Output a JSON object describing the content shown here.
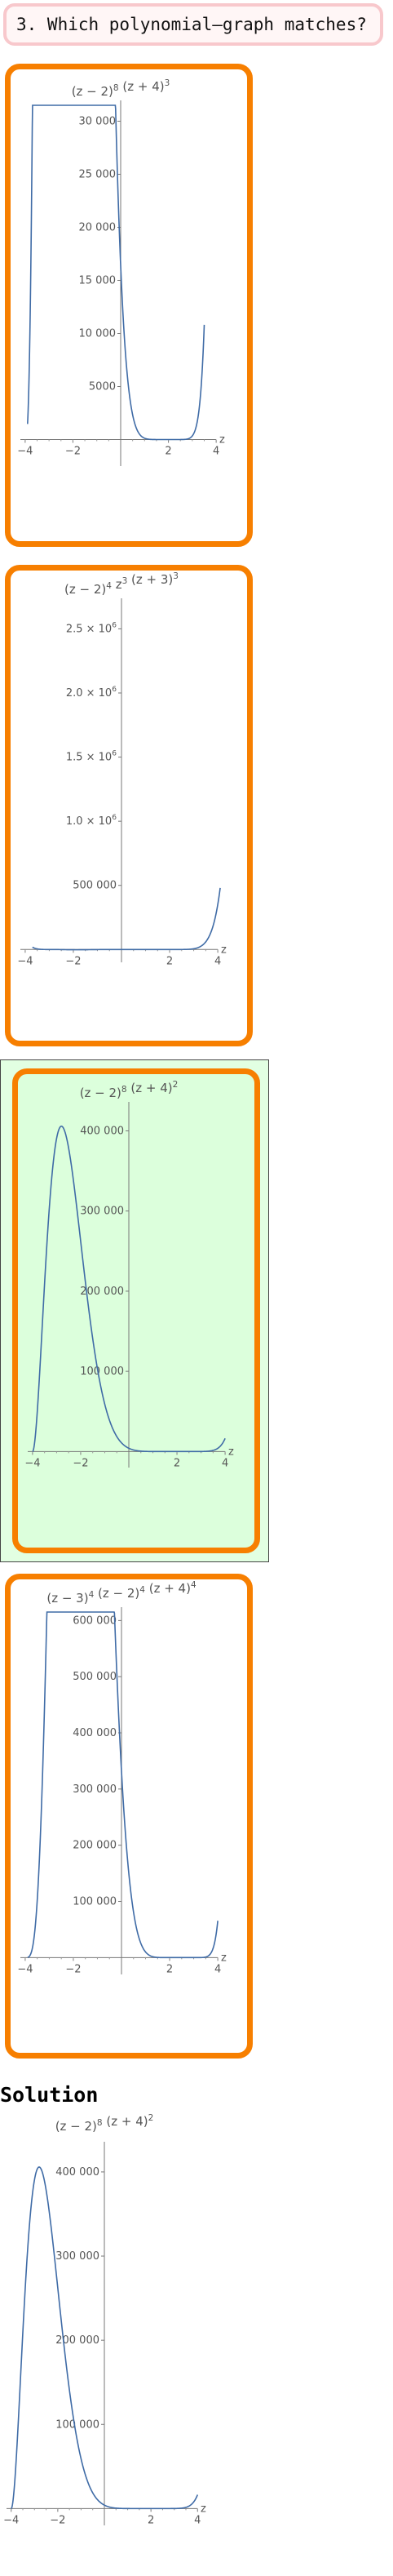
{
  "question": {
    "text": "3. Which polynomial–graph matches?"
  },
  "solution": {
    "heading": "Solution"
  },
  "chart_data": [
    {
      "type": "line",
      "role": "choice-1",
      "correct": false,
      "title_parts": [
        [
          "(z − 2)",
          "8"
        ],
        [
          " (z + 4)",
          "3"
        ]
      ],
      "xlim": [
        -4.2,
        4.2
      ],
      "ylim": [
        -2500,
        31500
      ],
      "x_ticks": [
        -4,
        -2,
        2,
        4
      ],
      "x_tick_labels": [
        "−4",
        "−2",
        "2",
        "4"
      ],
      "y_ticks": [
        5000,
        10000,
        15000,
        20000,
        25000,
        30000
      ],
      "y_tick_labels": [
        "5000",
        "10 000",
        "15 000",
        "20 000",
        "25 000",
        "30 000"
      ],
      "xlabel": "z",
      "series": [
        {
          "color": "#3f6ba6",
          "formula": "(z-2)^8 (z+4)^3",
          "x": [
            -3.9,
            3.5
          ]
        }
      ]
    },
    {
      "type": "line",
      "role": "choice-2",
      "correct": false,
      "title_parts": [
        [
          "(z − 2)",
          "4"
        ],
        [
          " z",
          "3"
        ],
        [
          " (z + 3)",
          "3"
        ]
      ],
      "xlim": [
        -4.2,
        4.2
      ],
      "ylim": [
        -100000,
        2700000
      ],
      "x_ticks": [
        -4,
        -2,
        2,
        4
      ],
      "x_tick_labels": [
        "−4",
        "−2",
        "2",
        "4"
      ],
      "y_ticks": [
        500000,
        1000000,
        1500000,
        2000000,
        2500000
      ],
      "y_tick_labels": [
        [
          "500 000",
          ""
        ],
        [
          "1.0 × 10",
          "6"
        ],
        [
          "1.5 × 10",
          "6"
        ],
        [
          "2.0 × 10",
          "6"
        ],
        [
          "2.5 × 10",
          "6"
        ]
      ],
      "xlabel": "z",
      "series": [
        {
          "color": "#3f6ba6",
          "formula": "(z-2)^4 z^3 (z+3)^3",
          "x": [
            -3.7,
            4.1
          ]
        }
      ]
    },
    {
      "type": "line",
      "role": "choice-3",
      "correct": true,
      "title_parts": [
        [
          "(z − 2)",
          "8"
        ],
        [
          " (z + 4)",
          "2"
        ]
      ],
      "xlim": [
        -4.2,
        4.2
      ],
      "ylim": [
        -20000,
        430000
      ],
      "x_ticks": [
        -4,
        -2,
        2,
        4
      ],
      "x_tick_labels": [
        "−4",
        "−2",
        "2",
        "4"
      ],
      "y_ticks": [
        100000,
        200000,
        300000,
        400000
      ],
      "y_tick_labels": [
        "100 000",
        "200 000",
        "300 000",
        "400 000"
      ],
      "xlabel": "z",
      "series": [
        {
          "color": "#3f6ba6",
          "formula": "(z-2)^8 (z+4)^2",
          "x": [
            -4.0,
            4.0
          ]
        }
      ]
    },
    {
      "type": "line",
      "role": "choice-4",
      "correct": false,
      "title_parts": [
        [
          "(z − 3)",
          "4"
        ],
        [
          " (z − 2)",
          "4"
        ],
        [
          " (z + 4)",
          "4"
        ]
      ],
      "xlim": [
        -4.2,
        4.2
      ],
      "ylim": [
        -30000,
        615000
      ],
      "x_ticks": [
        -4,
        -2,
        2,
        4
      ],
      "x_tick_labels": [
        "−4",
        "−2",
        "2",
        "4"
      ],
      "y_ticks": [
        100000,
        200000,
        300000,
        400000,
        500000,
        600000
      ],
      "y_tick_labels": [
        "100 000",
        "200 000",
        "300 000",
        "400 000",
        "500 000",
        "600 000"
      ],
      "xlabel": "z",
      "series": [
        {
          "color": "#3f6ba6",
          "formula": "(z-3)^4 (z-2)^4 (z+4)^4",
          "x": [
            -3.9,
            4.0
          ]
        }
      ]
    },
    {
      "type": "line",
      "role": "solution",
      "correct": true,
      "title_parts": [
        [
          "(z − 2)",
          "8"
        ],
        [
          " (z + 4)",
          "2"
        ]
      ],
      "xlim": [
        -4.2,
        4.2
      ],
      "ylim": [
        -20000,
        430000
      ],
      "x_ticks": [
        -4,
        -2,
        2,
        4
      ],
      "x_tick_labels": [
        "−4",
        "−2",
        "2",
        "4"
      ],
      "y_ticks": [
        100000,
        200000,
        300000,
        400000
      ],
      "y_tick_labels": [
        "100 000",
        "200 000",
        "300 000",
        "400 000"
      ],
      "xlabel": "z",
      "series": [
        {
          "color": "#3f6ba6",
          "formula": "(z-2)^8 (z+4)^2",
          "x": [
            -4.0,
            4.0
          ]
        }
      ]
    }
  ]
}
